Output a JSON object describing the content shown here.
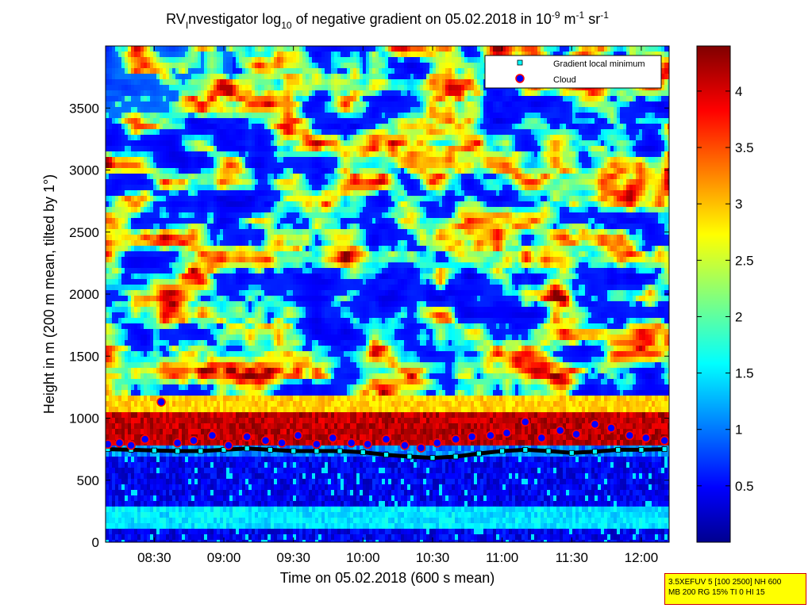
{
  "title": {
    "prefix": "RV",
    "prefix_sub": "I",
    "main": "nvestigator log",
    "log_base": "10",
    "middle": " of negative gradient on 05.02.2018 in 10",
    "exp1": "-9",
    "unit1": " m",
    "exp2": "-1",
    "unit2": " sr",
    "exp3": "-1"
  },
  "chart_data": {
    "type": "heatmap",
    "xlabel": "Time on 05.02.2018 (600 s mean)",
    "ylabel": "Height in m (200 m mean, tilted by 1°)",
    "xlim": [
      "08:09",
      "12:12"
    ],
    "ylim": [
      0,
      4000
    ],
    "x_ticks": [
      "08:30",
      "09:00",
      "09:30",
      "10:00",
      "10:30",
      "11:00",
      "11:30",
      "12:00"
    ],
    "y_ticks": [
      0,
      500,
      1000,
      1500,
      2000,
      2500,
      3000,
      3500
    ],
    "colorbar": {
      "min": 0,
      "max": 4.4,
      "ticks": [
        "0.5",
        "1",
        "1.5",
        "2",
        "2.5",
        "3",
        "3.5",
        "4"
      ],
      "colormap": "jet"
    },
    "legend": {
      "position": "top-right",
      "entries": [
        {
          "label": "Gradient local minimum",
          "marker": "square",
          "color": "#00ffff"
        },
        {
          "label": "Cloud",
          "marker": "circle",
          "color": "#ff0000"
        }
      ]
    },
    "series": [
      {
        "name": "Gradient local minimum",
        "x": [
          "08:10",
          "08:20",
          "08:30",
          "08:40",
          "08:50",
          "09:00",
          "09:10",
          "09:20",
          "09:30",
          "09:40",
          "09:50",
          "10:00",
          "10:10",
          "10:20",
          "10:30",
          "10:40",
          "10:50",
          "11:00",
          "11:10",
          "11:20",
          "11:30",
          "11:40",
          "11:50",
          "12:00",
          "12:10"
        ],
        "y": [
          750,
          745,
          740,
          735,
          735,
          745,
          755,
          745,
          735,
          735,
          735,
          725,
          705,
          690,
          680,
          690,
          715,
          735,
          745,
          735,
          720,
          730,
          745,
          745,
          750
        ]
      },
      {
        "name": "Cloud",
        "x": [
          "08:10",
          "08:15",
          "08:20",
          "08:26",
          "08:33",
          "08:40",
          "08:47",
          "08:55",
          "09:02",
          "09:10",
          "09:18",
          "09:25",
          "09:32",
          "09:40",
          "09:47",
          "09:55",
          "10:02",
          "10:10",
          "10:18",
          "10:25",
          "10:32",
          "10:40",
          "10:47",
          "10:55",
          "11:02",
          "11:10",
          "11:17",
          "11:25",
          "11:32",
          "11:40",
          "11:47",
          "11:55",
          "12:02",
          "12:10"
        ],
        "y": [
          790,
          800,
          780,
          830,
          1130,
          800,
          820,
          860,
          780,
          850,
          820,
          800,
          860,
          790,
          840,
          800,
          790,
          830,
          780,
          760,
          800,
          830,
          850,
          860,
          880,
          970,
          840,
          900,
          870,
          950,
          920,
          860,
          840,
          820
        ]
      }
    ]
  },
  "info": {
    "line1": "3.5XEFUV 5 [100 2500] NH 600",
    "line2": "MB 200 RG 15% TI 0 HI 15"
  }
}
